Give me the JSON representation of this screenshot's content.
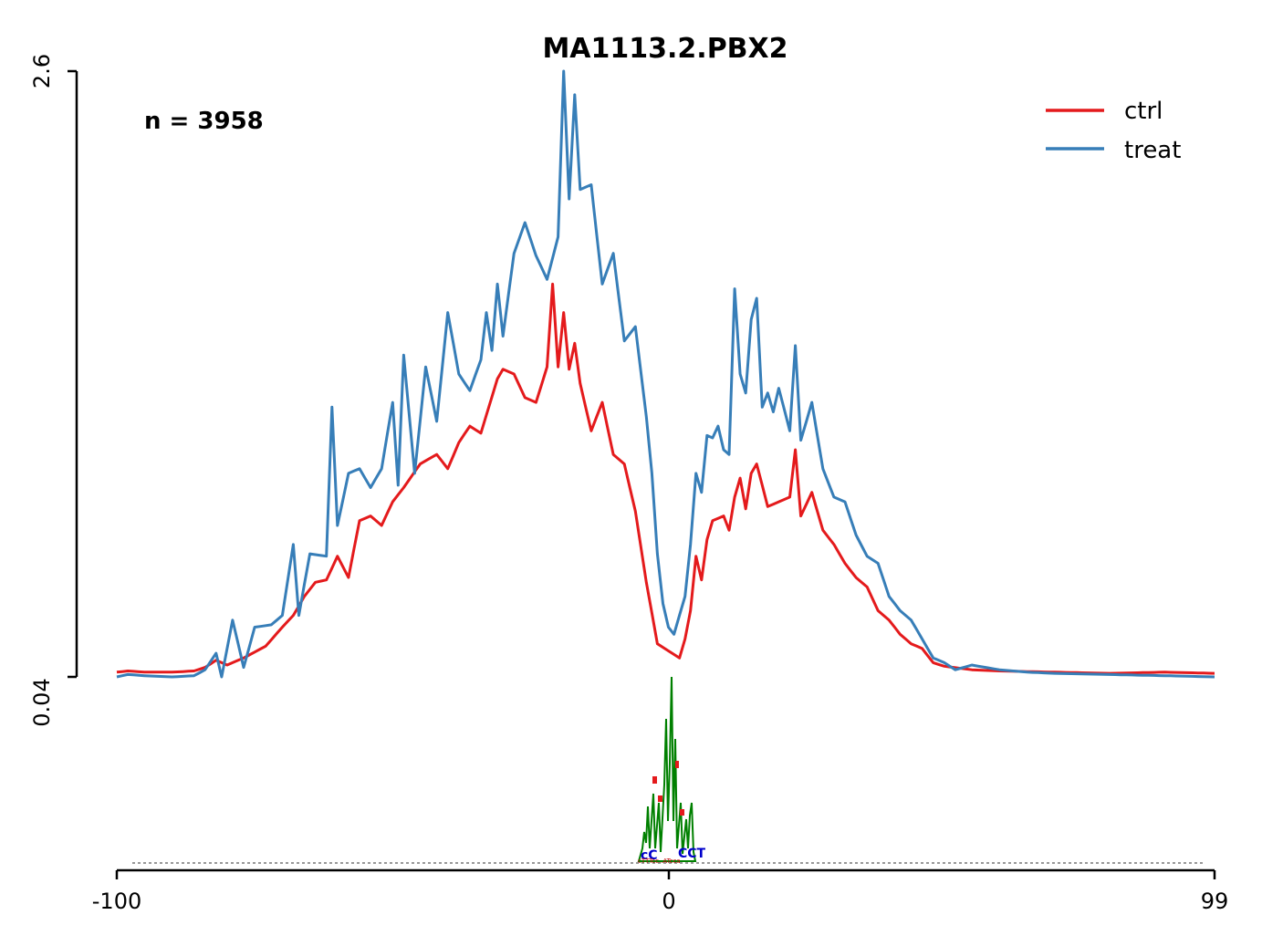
{
  "chart_data": {
    "type": "line",
    "title": "MA1113.2.PBX2",
    "annotation": "n = 3958",
    "xlabel": "",
    "ylabel": "",
    "xlim": [
      -100,
      99
    ],
    "ylim": [
      0.04,
      2.6
    ],
    "x_ticks": [
      "-100",
      "0",
      "99"
    ],
    "y_ticks": [
      "0.04",
      "2.6"
    ],
    "legend_position": "top-right",
    "colors": {
      "ctrl": "#e41a1c",
      "treat": "#377eb8"
    },
    "series": [
      {
        "name": "ctrl",
        "anchors": [
          [
            -100,
            0.06
          ],
          [
            -98,
            0.065
          ],
          [
            -95,
            0.06
          ],
          [
            -90,
            0.06
          ],
          [
            -86,
            0.065
          ],
          [
            -84,
            0.08
          ],
          [
            -82,
            0.11
          ],
          [
            -80,
            0.09
          ],
          [
            -77,
            0.12
          ],
          [
            -73,
            0.17
          ],
          [
            -70,
            0.25
          ],
          [
            -68,
            0.3
          ],
          [
            -66,
            0.38
          ],
          [
            -64,
            0.44
          ],
          [
            -62,
            0.45
          ],
          [
            -60,
            0.55
          ],
          [
            -58,
            0.46
          ],
          [
            -56,
            0.7
          ],
          [
            -54,
            0.72
          ],
          [
            -52,
            0.68
          ],
          [
            -50,
            0.78
          ],
          [
            -48,
            0.84
          ],
          [
            -45,
            0.94
          ],
          [
            -42,
            0.98
          ],
          [
            -40,
            0.92
          ],
          [
            -38,
            1.03
          ],
          [
            -36,
            1.1
          ],
          [
            -34,
            1.07
          ],
          [
            -31,
            1.3
          ],
          [
            -30,
            1.34
          ],
          [
            -28,
            1.32
          ],
          [
            -26,
            1.22
          ],
          [
            -24,
            1.2
          ],
          [
            -22,
            1.35
          ],
          [
            -21,
            1.7
          ],
          [
            -20,
            1.35
          ],
          [
            -19,
            1.58
          ],
          [
            -18,
            1.34
          ],
          [
            -17,
            1.45
          ],
          [
            -16,
            1.28
          ],
          [
            -14,
            1.08
          ],
          [
            -12,
            1.2
          ],
          [
            -10,
            0.98
          ],
          [
            -8,
            0.94
          ],
          [
            -6,
            0.74
          ],
          [
            -4,
            0.44
          ],
          [
            -2,
            0.18
          ],
          [
            0,
            0.15
          ],
          [
            2,
            0.12
          ],
          [
            3,
            0.2
          ],
          [
            4,
            0.32
          ],
          [
            5,
            0.55
          ],
          [
            6,
            0.45
          ],
          [
            7,
            0.62
          ],
          [
            8,
            0.7
          ],
          [
            10,
            0.72
          ],
          [
            11,
            0.66
          ],
          [
            12,
            0.8
          ],
          [
            13,
            0.88
          ],
          [
            14,
            0.75
          ],
          [
            15,
            0.9
          ],
          [
            16,
            0.94
          ],
          [
            18,
            0.76
          ],
          [
            20,
            0.78
          ],
          [
            22,
            0.8
          ],
          [
            23,
            1.0
          ],
          [
            24,
            0.72
          ],
          [
            26,
            0.82
          ],
          [
            28,
            0.66
          ],
          [
            30,
            0.6
          ],
          [
            32,
            0.52
          ],
          [
            34,
            0.46
          ],
          [
            36,
            0.42
          ],
          [
            38,
            0.32
          ],
          [
            40,
            0.28
          ],
          [
            42,
            0.22
          ],
          [
            44,
            0.18
          ],
          [
            46,
            0.16
          ],
          [
            48,
            0.1
          ],
          [
            50,
            0.085
          ],
          [
            55,
            0.07
          ],
          [
            60,
            0.065
          ],
          [
            70,
            0.06
          ],
          [
            80,
            0.055
          ],
          [
            90,
            0.06
          ],
          [
            99,
            0.055
          ]
        ]
      },
      {
        "name": "treat",
        "anchors": [
          [
            -100,
            0.04
          ],
          [
            -98,
            0.05
          ],
          [
            -95,
            0.045
          ],
          [
            -90,
            0.04
          ],
          [
            -86,
            0.045
          ],
          [
            -84,
            0.07
          ],
          [
            -82,
            0.14
          ],
          [
            -81,
            0.04
          ],
          [
            -79,
            0.28
          ],
          [
            -77,
            0.08
          ],
          [
            -75,
            0.25
          ],
          [
            -72,
            0.26
          ],
          [
            -70,
            0.3
          ],
          [
            -68,
            0.6
          ],
          [
            -67,
            0.3
          ],
          [
            -65,
            0.56
          ],
          [
            -62,
            0.55
          ],
          [
            -61,
            1.18
          ],
          [
            -60,
            0.68
          ],
          [
            -58,
            0.9
          ],
          [
            -56,
            0.92
          ],
          [
            -54,
            0.84
          ],
          [
            -52,
            0.92
          ],
          [
            -50,
            1.2
          ],
          [
            -49,
            0.85
          ],
          [
            -48,
            1.4
          ],
          [
            -46,
            0.9
          ],
          [
            -44,
            1.35
          ],
          [
            -42,
            1.12
          ],
          [
            -40,
            1.58
          ],
          [
            -38,
            1.32
          ],
          [
            -36,
            1.25
          ],
          [
            -34,
            1.38
          ],
          [
            -33,
            1.58
          ],
          [
            -32,
            1.42
          ],
          [
            -31,
            1.7
          ],
          [
            -30,
            1.48
          ],
          [
            -28,
            1.83
          ],
          [
            -26,
            1.96
          ],
          [
            -24,
            1.82
          ],
          [
            -22,
            1.72
          ],
          [
            -20,
            1.9
          ],
          [
            -19,
            2.6
          ],
          [
            -18,
            2.06
          ],
          [
            -17,
            2.5
          ],
          [
            -16,
            2.1
          ],
          [
            -14,
            2.12
          ],
          [
            -12,
            1.7
          ],
          [
            -10,
            1.83
          ],
          [
            -8,
            1.46
          ],
          [
            -6,
            1.52
          ],
          [
            -4,
            1.14
          ],
          [
            -3,
            0.9
          ],
          [
            -2,
            0.56
          ],
          [
            -1,
            0.35
          ],
          [
            0,
            0.25
          ],
          [
            1,
            0.22
          ],
          [
            2,
            0.3
          ],
          [
            3,
            0.38
          ],
          [
            4,
            0.6
          ],
          [
            5,
            0.9
          ],
          [
            6,
            0.82
          ],
          [
            7,
            1.06
          ],
          [
            8,
            1.05
          ],
          [
            9,
            1.1
          ],
          [
            10,
            1.0
          ],
          [
            11,
            0.98
          ],
          [
            12,
            1.68
          ],
          [
            13,
            1.32
          ],
          [
            14,
            1.24
          ],
          [
            15,
            1.55
          ],
          [
            16,
            1.64
          ],
          [
            17,
            1.18
          ],
          [
            18,
            1.24
          ],
          [
            19,
            1.16
          ],
          [
            20,
            1.26
          ],
          [
            22,
            1.08
          ],
          [
            23,
            1.44
          ],
          [
            24,
            1.04
          ],
          [
            26,
            1.2
          ],
          [
            28,
            0.92
          ],
          [
            30,
            0.8
          ],
          [
            32,
            0.78
          ],
          [
            34,
            0.64
          ],
          [
            36,
            0.55
          ],
          [
            38,
            0.52
          ],
          [
            40,
            0.38
          ],
          [
            42,
            0.32
          ],
          [
            44,
            0.28
          ],
          [
            46,
            0.2
          ],
          [
            48,
            0.12
          ],
          [
            50,
            0.1
          ],
          [
            52,
            0.07
          ],
          [
            55,
            0.09
          ],
          [
            60,
            0.07
          ],
          [
            65,
            0.06
          ],
          [
            70,
            0.055
          ],
          [
            80,
            0.05
          ],
          [
            90,
            0.045
          ],
          [
            99,
            0.04
          ]
        ]
      }
    ]
  },
  "motif": {
    "letters_left": "cC",
    "letters_right": "CCT",
    "small_text": "cTTTcc..ATcca"
  }
}
